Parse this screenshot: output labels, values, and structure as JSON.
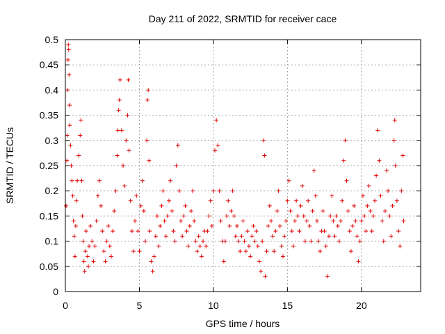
{
  "chart_data": {
    "type": "scatter",
    "title": "Day 211 of 2022, SRMTID for receiver cace",
    "xlabel": "GPS time / hours",
    "ylabel": "SRMTID / TECUs",
    "xlim": [
      0,
      24
    ],
    "ylim": [
      0,
      0.5
    ],
    "grid": true,
    "marker": "+",
    "color": "#e00000",
    "x_ticks": [
      0,
      5,
      10,
      15,
      20
    ],
    "x_tick_labels": [
      "0",
      "5",
      "10",
      "15",
      "20"
    ],
    "y_ticks": [
      0,
      0.05,
      0.1,
      0.15,
      0.2,
      0.25,
      0.3,
      0.35,
      0.4,
      0.45,
      0.5
    ],
    "y_tick_labels": [
      "0",
      "0.05",
      "0.1",
      "0.15",
      "0.2",
      "0.25",
      "0.3",
      "0.35",
      "0.4",
      "0.45",
      "0.5"
    ],
    "series": [
      {
        "name": "SRMTID",
        "points": [
          [
            0.05,
            0.17
          ],
          [
            0.1,
            0.26
          ],
          [
            0.12,
            0.31
          ],
          [
            0.15,
            0.4
          ],
          [
            0.18,
            0.46
          ],
          [
            0.2,
            0.49
          ],
          [
            0.22,
            0.48
          ],
          [
            0.25,
            0.43
          ],
          [
            0.28,
            0.37
          ],
          [
            0.3,
            0.33
          ],
          [
            0.35,
            0.29
          ],
          [
            0.4,
            0.25
          ],
          [
            0.45,
            0.22
          ],
          [
            0.5,
            0.19
          ],
          [
            0.55,
            0.14
          ],
          [
            0.6,
            0.11
          ],
          [
            0.65,
            0.07
          ],
          [
            0.7,
            0.13
          ],
          [
            0.75,
            0.18
          ],
          [
            0.8,
            0.22
          ],
          [
            0.9,
            0.27
          ],
          [
            1.0,
            0.31
          ],
          [
            1.05,
            0.34
          ],
          [
            1.1,
            0.22
          ],
          [
            1.15,
            0.15
          ],
          [
            1.2,
            0.1
          ],
          [
            1.25,
            0.06
          ],
          [
            1.3,
            0.04
          ],
          [
            1.35,
            0.08
          ],
          [
            1.4,
            0.12
          ],
          [
            1.5,
            0.07
          ],
          [
            1.55,
            0.05
          ],
          [
            1.6,
            0.09
          ],
          [
            1.7,
            0.13
          ],
          [
            1.8,
            0.1
          ],
          [
            1.9,
            0.06
          ],
          [
            2.0,
            0.09
          ],
          [
            2.1,
            0.14
          ],
          [
            2.2,
            0.19
          ],
          [
            2.3,
            0.22
          ],
          [
            2.4,
            0.17
          ],
          [
            2.5,
            0.12
          ],
          [
            2.6,
            0.08
          ],
          [
            2.7,
            0.06
          ],
          [
            2.8,
            0.1
          ],
          [
            2.9,
            0.13
          ],
          [
            3.0,
            0.09
          ],
          [
            3.1,
            0.07
          ],
          [
            3.2,
            0.12
          ],
          [
            3.3,
            0.16
          ],
          [
            3.4,
            0.2
          ],
          [
            3.5,
            0.27
          ],
          [
            3.55,
            0.32
          ],
          [
            3.6,
            0.36
          ],
          [
            3.65,
            0.38
          ],
          [
            3.7,
            0.42
          ],
          [
            3.8,
            0.32
          ],
          [
            3.9,
            0.25
          ],
          [
            4.0,
            0.21
          ],
          [
            4.1,
            0.3
          ],
          [
            4.2,
            0.35
          ],
          [
            4.25,
            0.42
          ],
          [
            4.3,
            0.28
          ],
          [
            4.4,
            0.18
          ],
          [
            4.5,
            0.12
          ],
          [
            4.6,
            0.08
          ],
          [
            4.7,
            0.14
          ],
          [
            4.8,
            0.19
          ],
          [
            4.9,
            0.12
          ],
          [
            5.0,
            0.08
          ],
          [
            5.1,
            0.17
          ],
          [
            5.2,
            0.22
          ],
          [
            5.3,
            0.16
          ],
          [
            5.4,
            0.1
          ],
          [
            5.5,
            0.3
          ],
          [
            5.55,
            0.38
          ],
          [
            5.6,
            0.4
          ],
          [
            5.65,
            0.26
          ],
          [
            5.7,
            0.12
          ],
          [
            5.8,
            0.06
          ],
          [
            5.9,
            0.04
          ],
          [
            6.0,
            0.07
          ],
          [
            6.1,
            0.11
          ],
          [
            6.2,
            0.15
          ],
          [
            6.3,
            0.09
          ],
          [
            6.4,
            0.13
          ],
          [
            6.5,
            0.17
          ],
          [
            6.6,
            0.2
          ],
          [
            6.7,
            0.14
          ],
          [
            6.8,
            0.11
          ],
          [
            6.9,
            0.15
          ],
          [
            7.0,
            0.18
          ],
          [
            7.1,
            0.22
          ],
          [
            7.2,
            0.16
          ],
          [
            7.3,
            0.12
          ],
          [
            7.4,
            0.1
          ],
          [
            7.5,
            0.25
          ],
          [
            7.6,
            0.29
          ],
          [
            7.7,
            0.2
          ],
          [
            7.8,
            0.14
          ],
          [
            7.9,
            0.11
          ],
          [
            8.0,
            0.15
          ],
          [
            8.1,
            0.17
          ],
          [
            8.2,
            0.12
          ],
          [
            8.3,
            0.09
          ],
          [
            8.4,
            0.13
          ],
          [
            8.5,
            0.16
          ],
          [
            8.6,
            0.2
          ],
          [
            8.7,
            0.14
          ],
          [
            8.8,
            0.1
          ],
          [
            8.9,
            0.08
          ],
          [
            9.0,
            0.11
          ],
          [
            9.1,
            0.09
          ],
          [
            9.2,
            0.07
          ],
          [
            9.3,
            0.1
          ],
          [
            9.4,
            0.12
          ],
          [
            9.5,
            0.09
          ],
          [
            9.6,
            0.12
          ],
          [
            9.7,
            0.15
          ],
          [
            9.8,
            0.18
          ],
          [
            9.9,
            0.13
          ],
          [
            10.0,
            0.2
          ],
          [
            10.1,
            0.28
          ],
          [
            10.2,
            0.34
          ],
          [
            10.3,
            0.29
          ],
          [
            10.4,
            0.2
          ],
          [
            10.5,
            0.14
          ],
          [
            10.6,
            0.1
          ],
          [
            10.7,
            0.06
          ],
          [
            10.8,
            0.1
          ],
          [
            10.9,
            0.15
          ],
          [
            11.0,
            0.18
          ],
          [
            11.1,
            0.13
          ],
          [
            11.2,
            0.16
          ],
          [
            11.3,
            0.2
          ],
          [
            11.4,
            0.15
          ],
          [
            11.5,
            0.11
          ],
          [
            11.6,
            0.13
          ],
          [
            11.7,
            0.1
          ],
          [
            11.8,
            0.08
          ],
          [
            11.9,
            0.11
          ],
          [
            12.0,
            0.14
          ],
          [
            12.1,
            0.1
          ],
          [
            12.2,
            0.08
          ],
          [
            12.3,
            0.12
          ],
          [
            12.4,
            0.09
          ],
          [
            12.5,
            0.07
          ],
          [
            12.6,
            0.11
          ],
          [
            12.7,
            0.13
          ],
          [
            12.8,
            0.1
          ],
          [
            12.9,
            0.12
          ],
          [
            13.0,
            0.09
          ],
          [
            13.1,
            0.06
          ],
          [
            13.2,
            0.04
          ],
          [
            13.3,
            0.1
          ],
          [
            13.4,
            0.3
          ],
          [
            13.45,
            0.27
          ],
          [
            13.5,
            0.03
          ],
          [
            13.6,
            0.08
          ],
          [
            13.7,
            0.13
          ],
          [
            13.8,
            0.17
          ],
          [
            13.9,
            0.14
          ],
          [
            14.0,
            0.11
          ],
          [
            14.1,
            0.08
          ],
          [
            14.2,
            0.12
          ],
          [
            14.3,
            0.16
          ],
          [
            14.4,
            0.2
          ],
          [
            14.5,
            0.13
          ],
          [
            14.6,
            0.09
          ],
          [
            14.7,
            0.07
          ],
          [
            14.8,
            0.11
          ],
          [
            14.9,
            0.14
          ],
          [
            15.0,
            0.18
          ],
          [
            15.1,
            0.22
          ],
          [
            15.2,
            0.16
          ],
          [
            15.3,
            0.12
          ],
          [
            15.4,
            0.09
          ],
          [
            15.5,
            0.14
          ],
          [
            15.6,
            0.18
          ],
          [
            15.7,
            0.15
          ],
          [
            15.8,
            0.12
          ],
          [
            15.9,
            0.17
          ],
          [
            16.0,
            0.21
          ],
          [
            16.1,
            0.15
          ],
          [
            16.2,
            0.1
          ],
          [
            16.3,
            0.14
          ],
          [
            16.4,
            0.18
          ],
          [
            16.5,
            0.13
          ],
          [
            16.6,
            0.1
          ],
          [
            16.7,
            0.16
          ],
          [
            16.8,
            0.24
          ],
          [
            16.9,
            0.19
          ],
          [
            17.0,
            0.14
          ],
          [
            17.1,
            0.1
          ],
          [
            17.2,
            0.08
          ],
          [
            17.3,
            0.12
          ],
          [
            17.4,
            0.16
          ],
          [
            17.5,
            0.12
          ],
          [
            17.6,
            0.09
          ],
          [
            17.7,
            0.03
          ],
          [
            17.8,
            0.11
          ],
          [
            17.9,
            0.15
          ],
          [
            18.0,
            0.19
          ],
          [
            18.1,
            0.14
          ],
          [
            18.2,
            0.11
          ],
          [
            18.3,
            0.15
          ],
          [
            18.4,
            0.13
          ],
          [
            18.5,
            0.1
          ],
          [
            18.6,
            0.14
          ],
          [
            18.7,
            0.18
          ],
          [
            18.8,
            0.26
          ],
          [
            18.9,
            0.3
          ],
          [
            19.0,
            0.22
          ],
          [
            19.1,
            0.16
          ],
          [
            19.2,
            0.12
          ],
          [
            19.3,
            0.08
          ],
          [
            19.4,
            0.13
          ],
          [
            19.5,
            0.17
          ],
          [
            19.6,
            0.14
          ],
          [
            19.7,
            0.11
          ],
          [
            19.8,
            0.06
          ],
          [
            19.9,
            0.1
          ],
          [
            20.0,
            0.14
          ],
          [
            20.1,
            0.19
          ],
          [
            20.2,
            0.15
          ],
          [
            20.3,
            0.12
          ],
          [
            20.4,
            0.17
          ],
          [
            20.5,
            0.21
          ],
          [
            20.6,
            0.16
          ],
          [
            20.7,
            0.12
          ],
          [
            20.8,
            0.15
          ],
          [
            20.9,
            0.18
          ],
          [
            21.0,
            0.23
          ],
          [
            21.1,
            0.32
          ],
          [
            21.2,
            0.26
          ],
          [
            21.3,
            0.19
          ],
          [
            21.4,
            0.14
          ],
          [
            21.5,
            0.1
          ],
          [
            21.6,
            0.16
          ],
          [
            21.7,
            0.24
          ],
          [
            21.8,
            0.2
          ],
          [
            21.9,
            0.15
          ],
          [
            22.0,
            0.11
          ],
          [
            22.1,
            0.17
          ],
          [
            22.2,
            0.3
          ],
          [
            22.25,
            0.34
          ],
          [
            22.3,
            0.25
          ],
          [
            22.4,
            0.18
          ],
          [
            22.5,
            0.12
          ],
          [
            22.6,
            0.09
          ],
          [
            22.7,
            0.2
          ],
          [
            22.8,
            0.27
          ],
          [
            22.85,
            0.14
          ]
        ]
      }
    ]
  }
}
